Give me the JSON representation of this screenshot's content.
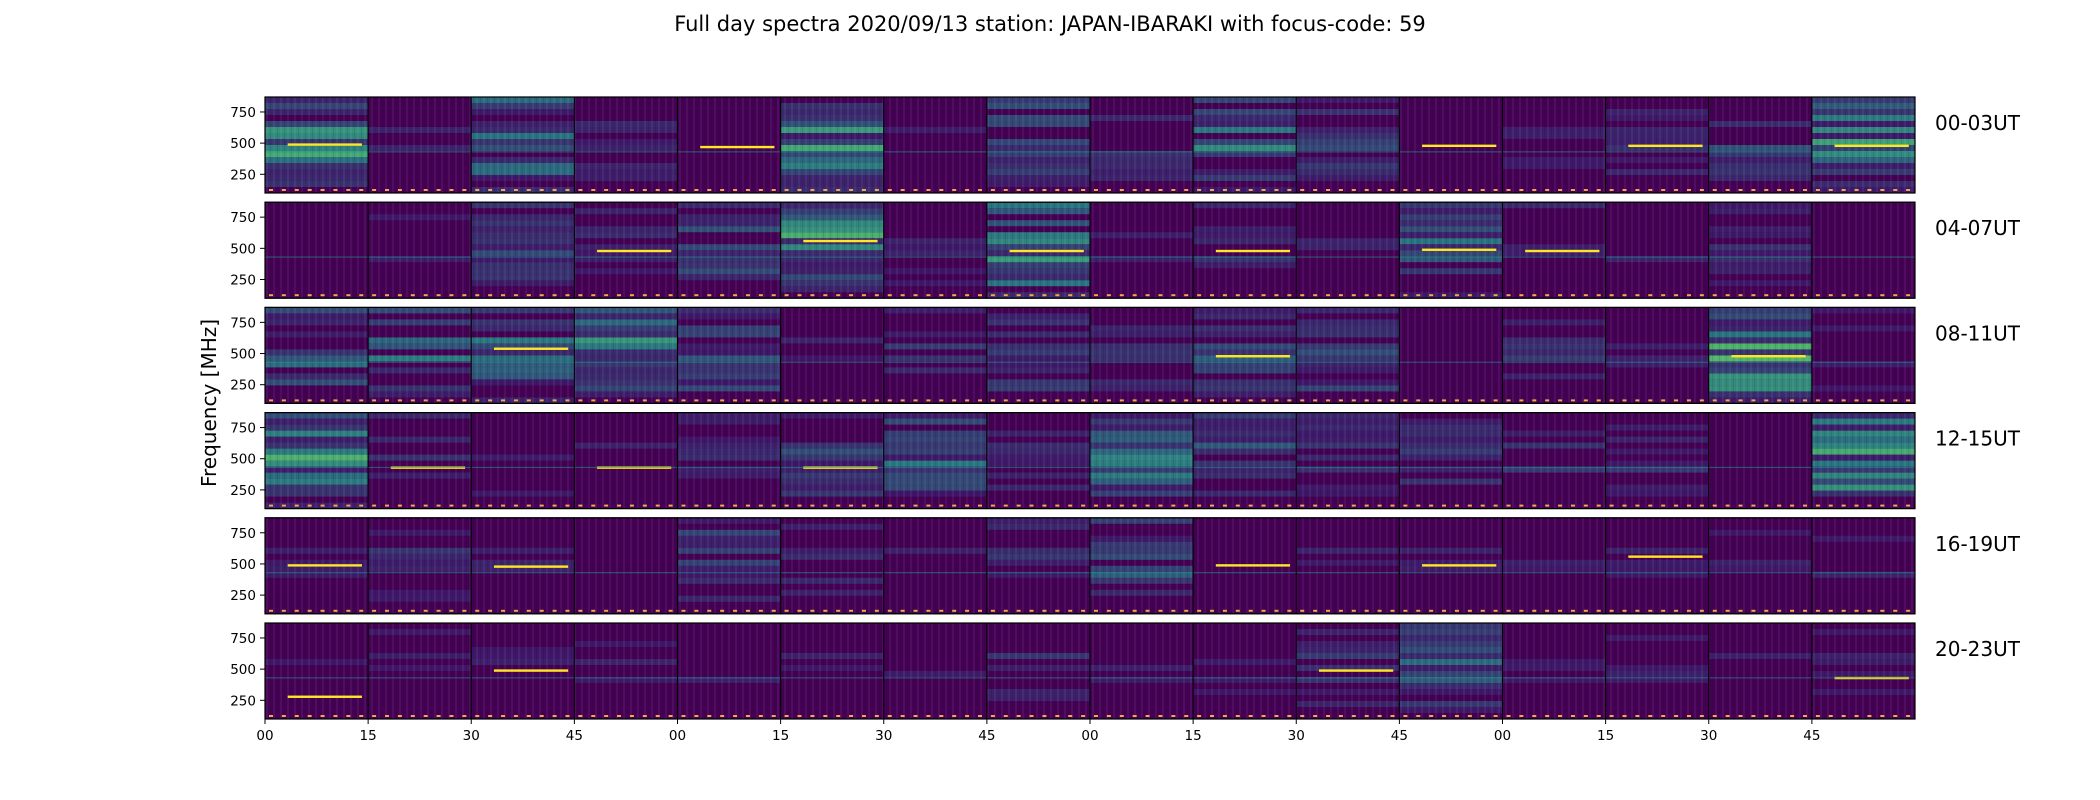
{
  "chart_data": {
    "type": "heatmap",
    "title": "Full day spectra 2020/09/13 station: JAPAN-IBARAKI with focus-code: 59",
    "ylabel": "Frequency [MHz]",
    "xlabel": "",
    "y_ticks": [
      750,
      500,
      250
    ],
    "y_range_mhz": [
      100,
      870
    ],
    "x_tick_labels": [
      "00",
      "15",
      "30",
      "45",
      "00",
      "15",
      "30",
      "45",
      "00",
      "15",
      "30",
      "45",
      "00",
      "15",
      "30",
      "45"
    ],
    "rows": [
      "00-03UT",
      "04-07UT",
      "08-11UT",
      "12-15UT",
      "16-19UT",
      "20-23UT"
    ],
    "panels_per_row": 16,
    "panel_minutes": 15,
    "colormap": "viridis",
    "colors": {
      "background": "#440154",
      "low": "#3b2a7a",
      "mid": "#21918c",
      "high": "#5ec962",
      "peak": "#fde725",
      "flag": "#f4a84a"
    },
    "intensity": [
      [
        0.9,
        0.3,
        0.8,
        0.4,
        0.2,
        0.9,
        0.3,
        0.6,
        0.4,
        0.7,
        0.5,
        0.2,
        0.3,
        0.4,
        0.5,
        0.8
      ],
      [
        0.2,
        0.3,
        0.5,
        0.4,
        0.6,
        0.9,
        0.3,
        0.8,
        0.3,
        0.4,
        0.3,
        0.6,
        0.4,
        0.3,
        0.4,
        0.2
      ],
      [
        0.6,
        0.7,
        0.8,
        0.8,
        0.6,
        0.3,
        0.4,
        0.5,
        0.4,
        0.6,
        0.7,
        0.2,
        0.4,
        0.3,
        1.0,
        0.3
      ],
      [
        0.9,
        0.4,
        0.3,
        0.3,
        0.4,
        0.5,
        0.7,
        0.4,
        0.8,
        0.6,
        0.4,
        0.5,
        0.4,
        0.4,
        0.2,
        0.9
      ],
      [
        0.3,
        0.4,
        0.3,
        0.2,
        0.6,
        0.4,
        0.3,
        0.4,
        0.6,
        0.2,
        0.3,
        0.3,
        0.3,
        0.3,
        0.3,
        0.3
      ],
      [
        0.3,
        0.3,
        0.3,
        0.3,
        0.3,
        0.3,
        0.3,
        0.4,
        0.3,
        0.3,
        0.4,
        0.6,
        0.3,
        0.3,
        0.3,
        0.3
      ]
    ],
    "bright_line_mhz": [
      [
        490,
        0,
        0,
        0,
        470,
        0,
        0,
        0,
        0,
        0,
        0,
        480,
        0,
        480,
        0,
        480
      ],
      [
        0,
        0,
        0,
        480,
        0,
        560,
        0,
        480,
        0,
        480,
        0,
        490,
        480,
        0,
        0,
        0
      ],
      [
        0,
        0,
        540,
        0,
        0,
        0,
        0,
        0,
        0,
        480,
        0,
        0,
        0,
        0,
        480,
        0
      ],
      [
        0,
        430,
        0,
        430,
        0,
        430,
        0,
        0,
        0,
        0,
        0,
        0,
        0,
        0,
        0,
        0
      ],
      [
        490,
        0,
        480,
        0,
        0,
        0,
        0,
        0,
        0,
        490,
        0,
        490,
        0,
        560,
        0,
        0
      ],
      [
        280,
        0,
        490,
        0,
        0,
        0,
        0,
        0,
        0,
        0,
        490,
        0,
        0,
        0,
        0,
        430
      ]
    ],
    "grid": false,
    "legend": "none"
  }
}
